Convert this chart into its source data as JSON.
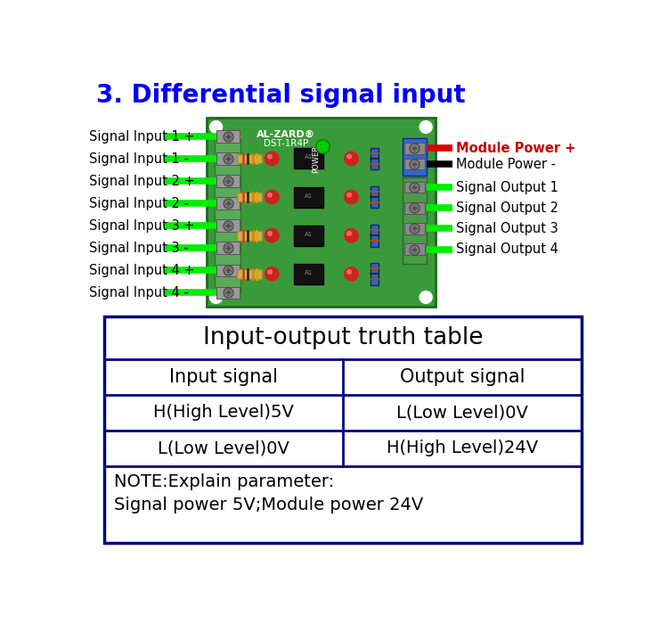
{
  "title": "3. Differential signal input",
  "title_color": "#0000ff",
  "title_fontsize": 20,
  "bg_color": "#ffffff",
  "left_labels": [
    "Signal Input 1 +",
    "Signal Input 1 -",
    "Signal Input 2 +",
    "Signal Input 2 -",
    "Signal Input 3 +",
    "Signal Input 3 -",
    "Signal Input 4 +",
    "Signal Input 4 -"
  ],
  "right_labels_top": [
    [
      "Module Power +",
      "#cc0000"
    ],
    [
      "Module Power -",
      "#000000"
    ]
  ],
  "right_labels_bottom": [
    "Signal Output 1",
    "Signal Output 2",
    "Signal Output 3",
    "Signal Output 4"
  ],
  "wire_color_green": "#00ee00",
  "wire_color_red": "#dd0000",
  "wire_color_black": "#000000",
  "table_title": "Input-output truth table",
  "table_header": [
    "Input signal",
    "Output signal"
  ],
  "table_rows": [
    [
      "H(High Level)5V",
      "L(Low Level)0V"
    ],
    [
      "L(Low Level)0V",
      "H(High Level)24V"
    ]
  ],
  "table_note": "NOTE:Explain parameter:\nSignal power 5V;Module power 24V",
  "table_border_color": "#000080",
  "table_bg_color": "#ffffff",
  "table_fontsize": 14,
  "label_fontsize": 10.5,
  "board_pcb_color": "#3a9a3a",
  "board_pcb_edge": "#1a6a1a"
}
